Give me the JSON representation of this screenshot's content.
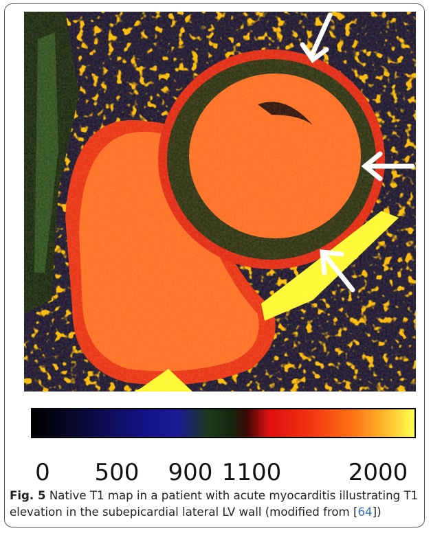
{
  "figure": {
    "colorbar": {
      "ticks": [
        "0",
        "500",
        "900",
        "1100",
        "2000"
      ]
    },
    "caption": {
      "label": "Fig. 5",
      "text_before": "Native T1 map in a patient with acute myocarditis illustrating T1 elevation in the subepicardial lateral LV wall (modified from [",
      "reference": "64",
      "text_after": "])"
    }
  }
}
